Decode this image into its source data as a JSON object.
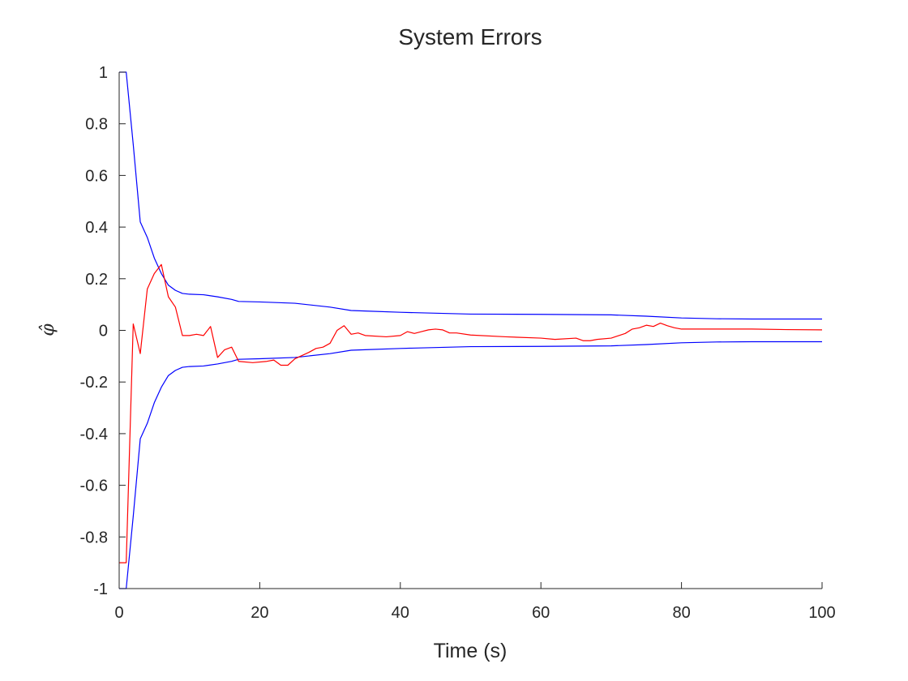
{
  "chart_data": {
    "type": "line",
    "title": "System Errors",
    "xlabel": "Time (s)",
    "ylabel": "φ̂",
    "xlim": [
      0,
      100
    ],
    "ylim": [
      -1,
      1
    ],
    "xticks": [
      0,
      20,
      40,
      60,
      80,
      100
    ],
    "xtick_labels": [
      "0",
      "20",
      "40",
      "60",
      "80",
      "100"
    ],
    "yticks": [
      -1,
      -0.8,
      -0.6,
      -0.4,
      -0.2,
      0,
      0.2,
      0.4,
      0.6,
      0.8,
      1
    ],
    "ytick_labels": [
      "-1",
      "-0.8",
      "-0.6",
      "-0.4",
      "-0.2",
      "0",
      "0.2",
      "0.4",
      "0.6",
      "0.8",
      "1"
    ],
    "grid": false,
    "series": [
      {
        "color": "#0000ff",
        "x": [
          0,
          1,
          2,
          3,
          4,
          5,
          6,
          7,
          8,
          9,
          10,
          12,
          14,
          16,
          17,
          20,
          25,
          30,
          33,
          35,
          40,
          50,
          60,
          70,
          75,
          80,
          85,
          90,
          100
        ],
        "y": [
          1,
          1,
          0.72,
          0.42,
          0.36,
          0.28,
          0.22,
          0.175,
          0.155,
          0.143,
          0.14,
          0.138,
          0.13,
          0.12,
          0.112,
          0.11,
          0.105,
          0.09,
          0.077,
          0.075,
          0.07,
          0.063,
          0.062,
          0.06,
          0.055,
          0.048,
          0.045,
          0.044,
          0.044
        ]
      },
      {
        "color": "#0000ff",
        "x": [
          0,
          1,
          2,
          3,
          4,
          5,
          6,
          7,
          8,
          9,
          10,
          12,
          14,
          16,
          17,
          20,
          25,
          30,
          33,
          35,
          40,
          50,
          60,
          70,
          75,
          80,
          85,
          90,
          100
        ],
        "y": [
          -1,
          -1,
          -0.72,
          -0.42,
          -0.36,
          -0.28,
          -0.22,
          -0.175,
          -0.155,
          -0.143,
          -0.14,
          -0.138,
          -0.13,
          -0.12,
          -0.112,
          -0.11,
          -0.105,
          -0.09,
          -0.077,
          -0.075,
          -0.07,
          -0.063,
          -0.062,
          -0.06,
          -0.055,
          -0.048,
          -0.045,
          -0.044,
          -0.044
        ]
      },
      {
        "color": "#ff0000",
        "x": [
          0,
          1,
          2,
          3,
          4,
          5,
          6,
          7,
          8,
          9,
          10,
          11,
          12,
          13,
          14,
          15,
          16,
          17,
          19,
          21,
          22,
          23,
          24,
          25,
          27,
          28,
          29,
          30,
          31,
          32,
          33,
          34,
          35,
          38,
          40,
          41,
          42,
          43,
          44,
          45,
          46,
          47,
          48,
          50,
          55,
          60,
          62,
          65,
          66,
          67,
          68,
          70,
          72,
          73,
          74,
          75,
          76,
          77,
          78,
          79,
          80,
          85,
          90,
          95,
          100
        ],
        "y": [
          -0.9,
          -0.9,
          0.025,
          -0.09,
          0.16,
          0.22,
          0.255,
          0.13,
          0.09,
          -0.02,
          -0.02,
          -0.015,
          -0.02,
          0.015,
          -0.105,
          -0.075,
          -0.065,
          -0.12,
          -0.125,
          -0.12,
          -0.115,
          -0.135,
          -0.135,
          -0.11,
          -0.085,
          -0.07,
          -0.065,
          -0.05,
          0,
          0.018,
          -0.015,
          -0.01,
          -0.02,
          -0.025,
          -0.02,
          -0.005,
          -0.012,
          -0.005,
          0.002,
          0.005,
          0.002,
          -0.01,
          -0.01,
          -0.018,
          -0.025,
          -0.03,
          -0.035,
          -0.03,
          -0.04,
          -0.04,
          -0.035,
          -0.03,
          -0.012,
          0.005,
          0.01,
          0.02,
          0.015,
          0.028,
          0.018,
          0.01,
          0.005,
          0.005,
          0.005,
          0.003,
          0.002
        ]
      }
    ]
  }
}
